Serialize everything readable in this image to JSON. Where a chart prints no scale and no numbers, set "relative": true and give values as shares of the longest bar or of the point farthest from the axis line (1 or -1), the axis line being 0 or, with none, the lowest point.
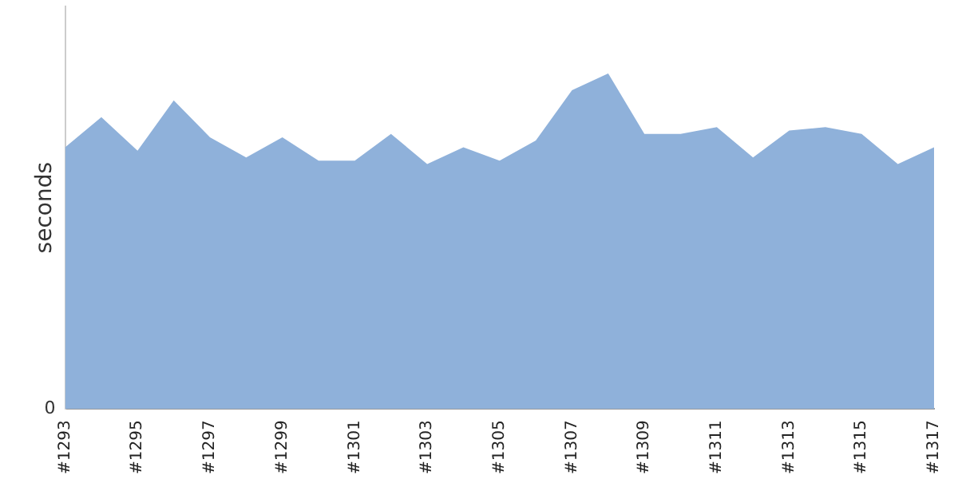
{
  "chart_data": {
    "type": "area",
    "ylabel": "seconds",
    "relative": true,
    "annotations": [
      "0"
    ],
    "grid": false,
    "legend": false,
    "categories": [
      "#1293",
      null,
      "#1295",
      null,
      "#1297",
      null,
      "#1299",
      null,
      "#1301",
      null,
      "#1303",
      null,
      "#1305",
      null,
      "#1307",
      null,
      "#1309",
      null,
      "#1311",
      null,
      "#1313",
      null,
      "#1315",
      null,
      "#1317"
    ],
    "series": [
      {
        "color": "#8fb1da",
        "values": [
          0.78,
          0.87,
          0.77,
          0.92,
          0.81,
          0.75,
          0.81,
          0.74,
          0.74,
          0.82,
          0.73,
          0.78,
          0.74,
          0.8,
          0.95,
          1,
          0.82,
          0.82,
          0.84,
          0.75,
          0.83,
          0.84,
          0.82,
          0.73,
          0.78
        ]
      }
    ]
  }
}
